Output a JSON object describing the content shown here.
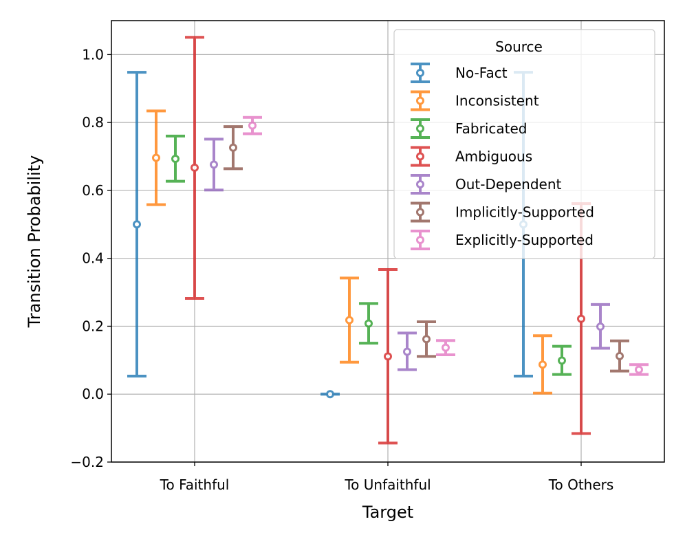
{
  "chart_data": {
    "type": "errorbar",
    "xlabel": "Target",
    "ylabel": "Transition Probability",
    "categories": [
      "To Faithful",
      "To Unfaithful",
      "To Others"
    ],
    "ylim": [
      -0.2,
      1.1
    ],
    "yticks": [
      -0.2,
      0.0,
      0.2,
      0.4,
      0.6,
      0.8,
      1.0
    ],
    "ytick_labels": [
      "−0.2",
      "0.0",
      "0.2",
      "0.4",
      "0.6",
      "0.8",
      "1.0"
    ],
    "grid": true,
    "legend": {
      "title": "Source",
      "position": "top-right"
    },
    "series": [
      {
        "name": "No-Fact",
        "color": "#1f77b4",
        "values": [
          0.5,
          0.0,
          0.5
        ],
        "lower": [
          0.053,
          0.0,
          0.053
        ],
        "upper": [
          0.948,
          0.0,
          0.948
        ]
      },
      {
        "name": "Inconsistent",
        "color": "#ff7f0e",
        "values": [
          0.696,
          0.218,
          0.087
        ],
        "lower": [
          0.558,
          0.094,
          0.003
        ],
        "upper": [
          0.834,
          0.342,
          0.172
        ]
      },
      {
        "name": "Fabricated",
        "color": "#2ca02c",
        "values": [
          0.693,
          0.208,
          0.099
        ],
        "lower": [
          0.627,
          0.15,
          0.058
        ],
        "upper": [
          0.76,
          0.267,
          0.141
        ]
      },
      {
        "name": "Ambiguous",
        "color": "#d62728",
        "values": [
          0.667,
          0.111,
          0.222
        ],
        "lower": [
          0.282,
          -0.144,
          -0.116
        ],
        "upper": [
          1.051,
          0.367,
          0.561
        ]
      },
      {
        "name": "Out-Dependent",
        "color": "#9467bd",
        "values": [
          0.676,
          0.125,
          0.199
        ],
        "lower": [
          0.601,
          0.072,
          0.135
        ],
        "upper": [
          0.751,
          0.18,
          0.264
        ]
      },
      {
        "name": "Implicitly-Supported",
        "color": "#8c564b",
        "values": [
          0.726,
          0.162,
          0.112
        ],
        "lower": [
          0.664,
          0.111,
          0.068
        ],
        "upper": [
          0.788,
          0.213,
          0.157
        ]
      },
      {
        "name": "Explicitly-Supported",
        "color": "#e377c2",
        "values": [
          0.791,
          0.137,
          0.072
        ],
        "lower": [
          0.767,
          0.116,
          0.058
        ],
        "upper": [
          0.815,
          0.158,
          0.087
        ]
      }
    ]
  }
}
